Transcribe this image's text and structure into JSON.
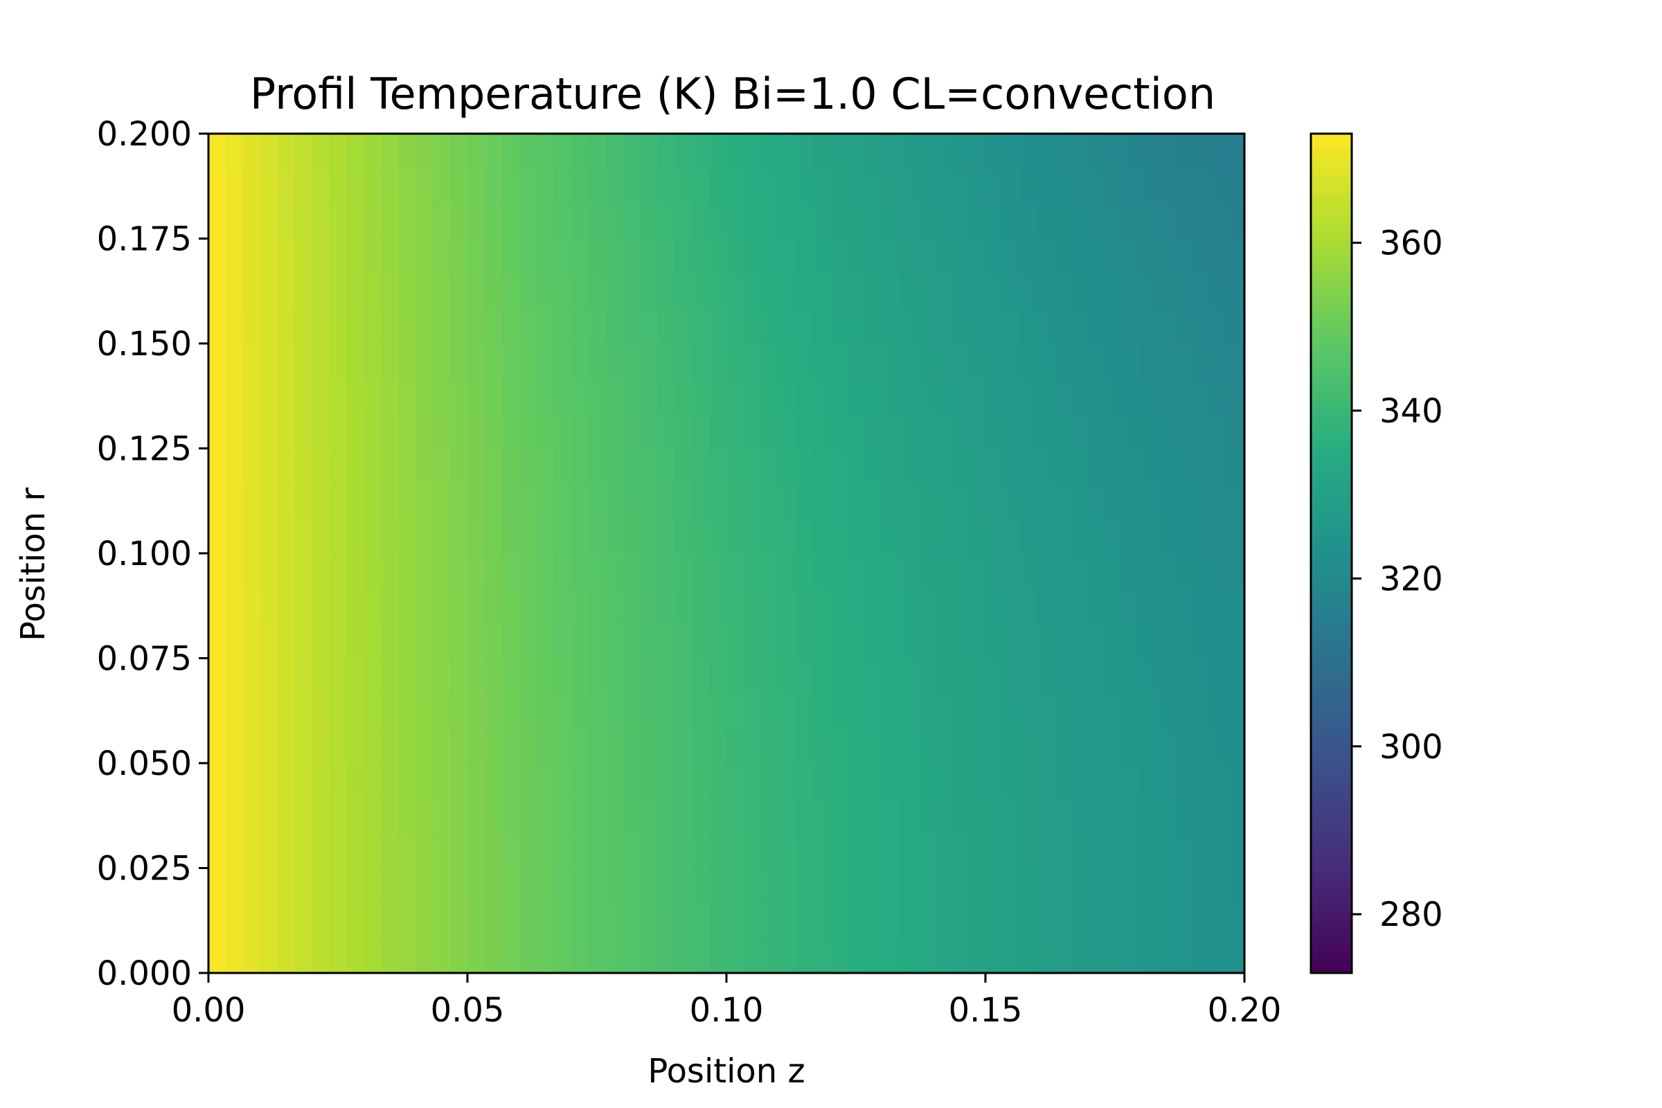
{
  "chart_data": {
    "type": "heatmap",
    "title": "Profil Temperature (K) Bi=1.0 CL=convection",
    "xlabel": "Position z",
    "ylabel": "Position r",
    "xlim": [
      0.0,
      0.2
    ],
    "ylim": [
      0.0,
      0.2
    ],
    "x_ticks": [
      "0.00",
      "0.05",
      "0.10",
      "0.15",
      "0.20"
    ],
    "y_ticks": [
      "0.000",
      "0.025",
      "0.050",
      "0.075",
      "0.100",
      "0.125",
      "0.150",
      "0.175",
      "0.200"
    ],
    "colormap": "viridis",
    "colorbar": {
      "range": [
        273,
        373
      ],
      "ticks": [
        "280",
        "300",
        "320",
        "340",
        "360"
      ]
    },
    "temperature_profile": {
      "description_units": "K",
      "z": [
        0.0,
        0.02,
        0.04,
        0.06,
        0.08,
        0.1,
        0.12,
        0.14,
        0.16,
        0.18,
        0.2
      ],
      "T_at_r0": [
        373,
        364,
        357,
        351,
        346,
        341,
        337,
        333,
        329,
        326,
        323
      ],
      "T_at_rmax": [
        373,
        363,
        355,
        348,
        342,
        336,
        331,
        326,
        322,
        318,
        315
      ]
    },
    "grid": false
  }
}
